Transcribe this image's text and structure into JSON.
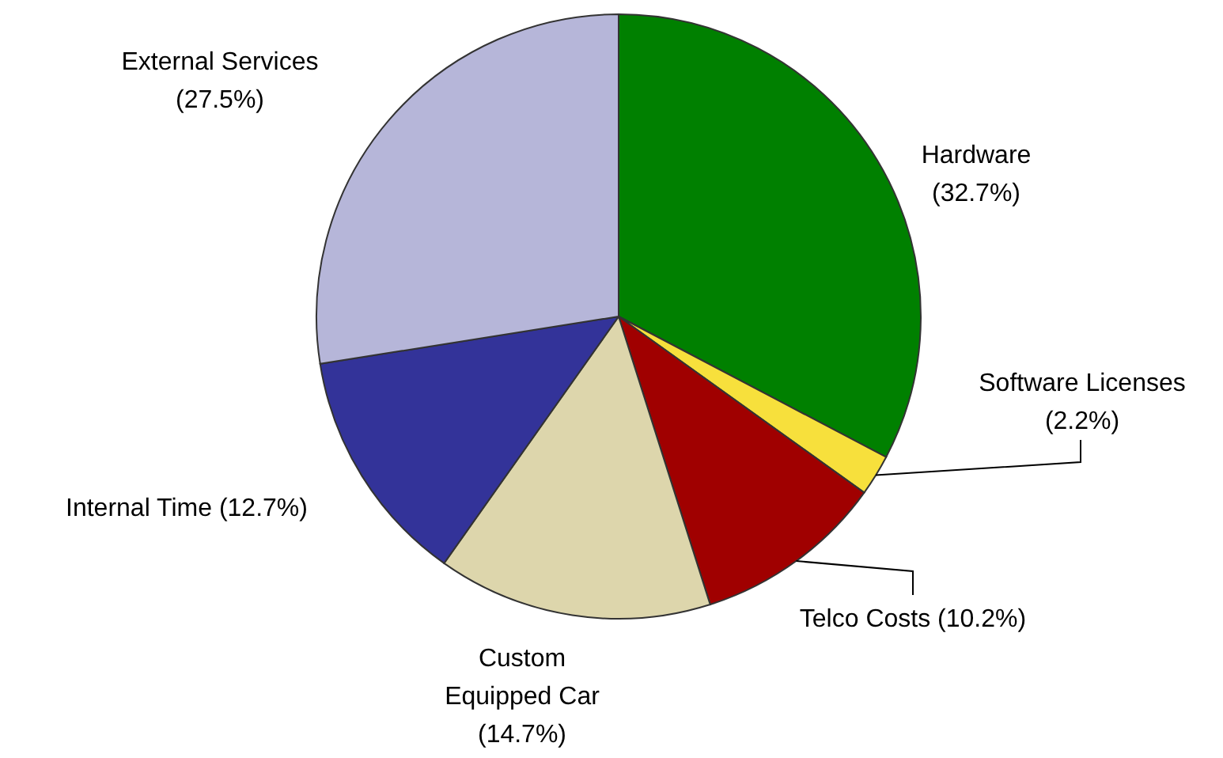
{
  "chart_data": {
    "type": "pie",
    "categories": [
      "Hardware",
      "Software Licenses",
      "Telco Costs",
      "Custom Equipped Car",
      "Internal Time",
      "External Services"
    ],
    "values": [
      32.7,
      2.2,
      10.2,
      14.7,
      12.7,
      27.5
    ],
    "value_labels": [
      "(32.7%)",
      "(2.2%)",
      "(10.2%)",
      "(14.7%)",
      "(12.7%)",
      "(27.5%)"
    ],
    "colors": [
      "#008000",
      "#f7e03c",
      "#a00000",
      "#ddd6ac",
      "#333399",
      "#b6b6d9"
    ]
  }
}
